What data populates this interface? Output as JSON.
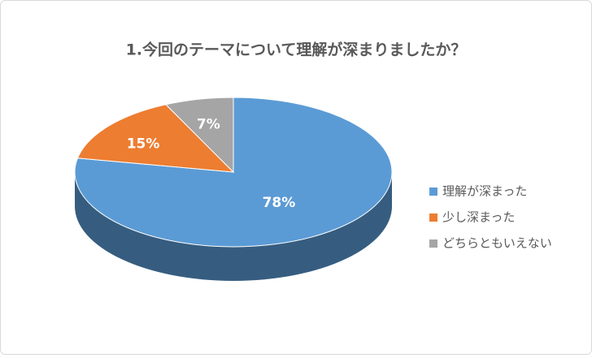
{
  "chart_data": {
    "type": "pie",
    "title": "1.今回のテーマについて理解が深まりましたか？",
    "categories": [
      "理解が深まった",
      "少し深まった",
      "どちらともいえない"
    ],
    "values": [
      78,
      15,
      7
    ],
    "value_labels": [
      "78%",
      "15%",
      "7%"
    ],
    "colors": [
      "#5b9bd5",
      "#ed7d31",
      "#a5a5a5"
    ],
    "legend": "right"
  }
}
